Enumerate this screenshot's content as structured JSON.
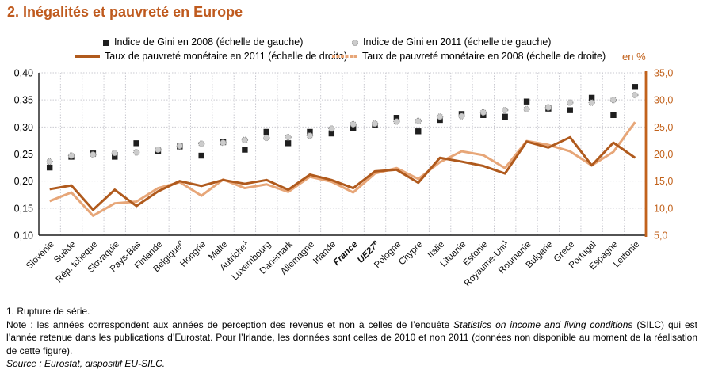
{
  "title": "2. Inégalités et pauvreté en Europe",
  "legend": {
    "gini2008": "Indice de Gini en 2008 (échelle de gauche)",
    "gini2011": "Indice de Gini en 2011 (échelle de gauche)",
    "pov2011": "Taux de pauvreté monétaire en 2011 (échelle de droite)",
    "pov2008": "Taux de pauvreté monétaire en 2008 (échelle de droite)",
    "unit": "en %"
  },
  "colors": {
    "title_orange": "#bf5a1e",
    "axis_orange": "#c2621c",
    "line_dark_2011": "#b05a1d",
    "line_light_2008": "#e7a678",
    "square_2008": "#1f1f1f",
    "circle_fill_2011": "#cccccc",
    "circle_stroke_2011": "#8a8a8a",
    "grid": "#c9c9d0",
    "axis_black": "#1a1a1a"
  },
  "chart_data": {
    "type": "line",
    "title": "2. Inégalités et pauvreté en Europe",
    "left_axis": {
      "label": "Indice de Gini",
      "min": 0.1,
      "max": 0.4,
      "tick_values": [
        0.4,
        0.35,
        0.3,
        0.25,
        0.2,
        0.15,
        0.1
      ],
      "tick_labels": [
        "0,40",
        "0,35",
        "0,30",
        "0,25",
        "0,20",
        "0,15",
        "0,10"
      ]
    },
    "right_axis": {
      "label": "en %",
      "min": 5.0,
      "max": 35.0,
      "tick_values": [
        35,
        30,
        25,
        20,
        15,
        10,
        5
      ],
      "tick_labels": [
        "35,0",
        "30,0",
        "25,0",
        "20,0",
        "15,0",
        "10,0",
        "5,0"
      ]
    },
    "grid": true,
    "legend_position": "top",
    "categories": [
      {
        "label": "Slovénie"
      },
      {
        "label": "Suède"
      },
      {
        "label": "Rép. tchèque"
      },
      {
        "label": "Slovaquie"
      },
      {
        "label": "Pays-Bas"
      },
      {
        "label": "Finlande"
      },
      {
        "label": "Belgique",
        "sup": "p",
        "supItalic": true
      },
      {
        "label": "Hongrie"
      },
      {
        "label": "Malte"
      },
      {
        "label": "Autriche",
        "sup": "1"
      },
      {
        "label": "Luxembourg"
      },
      {
        "label": "Danemark"
      },
      {
        "label": "Allemagne"
      },
      {
        "label": "Irlande"
      },
      {
        "label": "France",
        "em": true
      },
      {
        "label": "UE27",
        "sup": "e",
        "supItalic": true,
        "em": true
      },
      {
        "label": "Pologne"
      },
      {
        "label": "Chypre"
      },
      {
        "label": "Italie"
      },
      {
        "label": "Lituanie"
      },
      {
        "label": "Estonie"
      },
      {
        "label": "Royaume-Uni",
        "sup": "1"
      },
      {
        "label": "Roumanie"
      },
      {
        "label": "Bulgarie"
      },
      {
        "label": "Grèce"
      },
      {
        "label": "Portugal"
      },
      {
        "label": "Espagne"
      },
      {
        "label": "Lettonie"
      }
    ],
    "series": [
      {
        "name": "Indice de Gini en 2008 (échelle de gauche)",
        "axis": "left",
        "marker": "square-black",
        "values": [
          0.225,
          0.245,
          0.251,
          0.245,
          0.27,
          0.256,
          0.264,
          0.247,
          0.272,
          0.258,
          0.291,
          0.27,
          0.291,
          0.288,
          0.298,
          0.303,
          0.317,
          0.292,
          0.313,
          0.324,
          0.322,
          0.319,
          0.347,
          0.334,
          0.331,
          0.354,
          0.322,
          0.374
        ]
      },
      {
        "name": "Indice de Gini en 2011 (échelle de gauche)",
        "axis": "left",
        "marker": "circle-gray",
        "values": [
          0.236,
          0.247,
          0.249,
          0.252,
          0.253,
          0.258,
          0.265,
          0.269,
          0.271,
          0.276,
          0.28,
          0.281,
          0.284,
          0.297,
          0.305,
          0.306,
          0.31,
          0.311,
          0.319,
          0.32,
          0.327,
          0.331,
          0.333,
          0.336,
          0.345,
          0.345,
          0.35,
          0.359
        ]
      },
      {
        "name": "Taux de pauvreté monétaire en 2011 (échelle de droite)",
        "axis": "right",
        "marker": "line-dark",
        "values": [
          13.5,
          14.2,
          9.7,
          13.4,
          10.4,
          13.1,
          15.0,
          14.1,
          15.2,
          14.5,
          15.2,
          13.4,
          16.2,
          15.2,
          13.7,
          16.8,
          17.1,
          14.7,
          19.3,
          18.6,
          17.8,
          16.4,
          22.3,
          21.2,
          23.1,
          17.9,
          22.1,
          19.3
        ]
      },
      {
        "name": "Taux de pauvreté monétaire en 2008 (échelle de droite)",
        "axis": "right",
        "marker": "line-light",
        "values": [
          11.3,
          12.9,
          8.6,
          10.9,
          11.2,
          13.7,
          14.8,
          12.3,
          15.3,
          13.7,
          14.4,
          13.0,
          15.8,
          14.9,
          12.9,
          16.4,
          17.4,
          15.4,
          18.5,
          20.5,
          19.8,
          17.4,
          22.4,
          21.7,
          20.5,
          17.9,
          20.4,
          25.9
        ]
      }
    ]
  },
  "footnotes": {
    "break_note": "1. Rupture de série.",
    "note_prefix": "Note : les années correspondent aux années de perception des revenus et non à celles de l’enquête ",
    "note_italic": "Statistics on income and living conditions",
    "note_suffix": " (SILC) qui est l’année retenue dans les publications d’Eurostat. Pour l’Irlande, les données sont celles de 2010 et non 2011 (données non disponible au moment de la réalisation de cette figure).",
    "source": "Source : Eurostat, dispositif EU-SILC."
  }
}
